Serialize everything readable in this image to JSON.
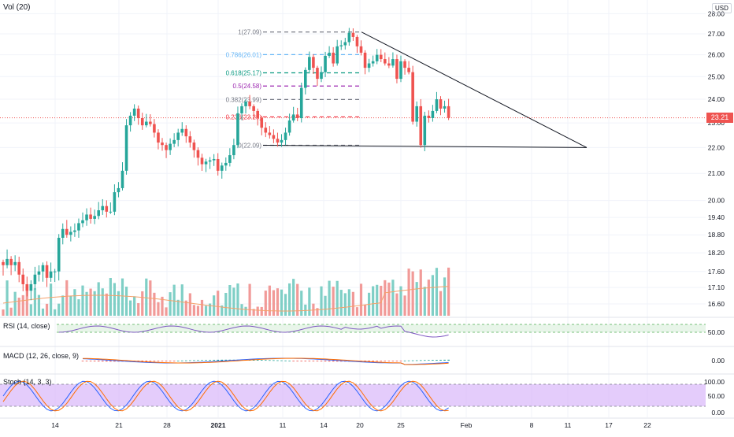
{
  "currency": "USD",
  "last_price": "23.21",
  "colors": {
    "up": "#26a69a",
    "down": "#ef5350",
    "up_vol": "#7fcfc6",
    "down_vol": "#f19a98",
    "vol_ma": "#f5a16a",
    "rsi": "#7e57c2",
    "rsi_band": "#4caf50",
    "macd": "#2962ff",
    "signal": "#ff6d00",
    "stoch_k": "#2962ff",
    "stoch_d": "#ff6d00",
    "stoch_band": "#d8b7f9",
    "trendline": "#131722",
    "grid": "#f0f3fa",
    "text": "#131722",
    "muted": "#787b86",
    "price_line": "#ef5350"
  },
  "panes": {
    "volume_label": "Vol (20)",
    "rsi_label": "RSI (14, close)",
    "macd_label": "MACD (12, 26, close, 9)",
    "stoch_label": "Stoch (14, 3, 3)"
  },
  "x_labels": [
    "14",
    "21",
    "28",
    "2021",
    "11",
    "14",
    "20",
    "25",
    "Feb",
    "8",
    "11",
    "17",
    "22"
  ],
  "chart_data": {
    "type": "candlestick",
    "y_axis": {
      "scale": "log",
      "ticks": [
        "28.00",
        "27.00",
        "26.00",
        "25.00",
        "24.00",
        "23.00",
        "22.00",
        "21.00",
        "20.00",
        "19.40",
        "18.80",
        "18.20",
        "17.60",
        "17.10",
        "16.60"
      ]
    },
    "candles_close": [
      17.8,
      18.0,
      17.8,
      17.9,
      17.5,
      17.2,
      17.0,
      17.2,
      17.5,
      17.6,
      17.8,
      17.4,
      17.6,
      17.6,
      18.7,
      19.0,
      18.8,
      18.9,
      18.95,
      19.2,
      19.3,
      19.5,
      19.35,
      19.45,
      19.65,
      19.8,
      19.6,
      19.6,
      20.3,
      20.45,
      21.1,
      22.9,
      23.3,
      23.6,
      23.2,
      22.9,
      23.05,
      22.95,
      22.6,
      22.2,
      22.1,
      21.9,
      22.15,
      22.3,
      22.6,
      22.75,
      22.45,
      22.2,
      21.9,
      21.6,
      21.35,
      21.45,
      21.5,
      21.55,
      21.1,
      21.3,
      21.4,
      21.7,
      22.1,
      23.4,
      23.7,
      23.9,
      23.7,
      23.5,
      23.2,
      22.8,
      22.6,
      22.5,
      22.35,
      22.2,
      22.3,
      22.6,
      23.1,
      23.35,
      23.2,
      24.5,
      25.3,
      25.9,
      25.4,
      24.9,
      25.2,
      25.95,
      26.1,
      25.6,
      26.4,
      26.45,
      26.6,
      27.05,
      26.85,
      26.4,
      26.1,
      25.4,
      25.6,
      25.7,
      26.0,
      25.8,
      25.6,
      25.5,
      25.8,
      24.9,
      25.7,
      25.4,
      25.2,
      23.05,
      23.7,
      22.1,
      23.3,
      23.2,
      23.5,
      24.0,
      23.6,
      23.7,
      23.21
    ],
    "volume_ma": "moving average of volume (20)",
    "fibonacci": [
      {
        "label": "1(27.09)",
        "price": 27.09,
        "color": "#787b86"
      },
      {
        "label": "0.786(26.01)",
        "price": 26.01,
        "color": "#64b5f6"
      },
      {
        "label": "0.618(25.17)",
        "price": 25.17,
        "color": "#089981"
      },
      {
        "label": "0.5(24.58)",
        "price": 24.58,
        "color": "#9c27b0"
      },
      {
        "label": "0.382(23.99)",
        "price": 23.99,
        "color": "#787b86"
      },
      {
        "label": "0.236(23.25)",
        "price": 23.25,
        "color": "#f23645"
      },
      {
        "label": "0(22.09)",
        "price": 22.09,
        "color": "#787b86"
      }
    ],
    "rsi": {
      "ticks": [
        "50.00"
      ],
      "band": [
        30,
        70
      ]
    },
    "macd": {
      "ticks": [
        "0.00"
      ]
    },
    "stoch": {
      "ticks": [
        "100.00",
        "50.00",
        "0.00"
      ],
      "band": [
        20,
        80
      ]
    }
  }
}
